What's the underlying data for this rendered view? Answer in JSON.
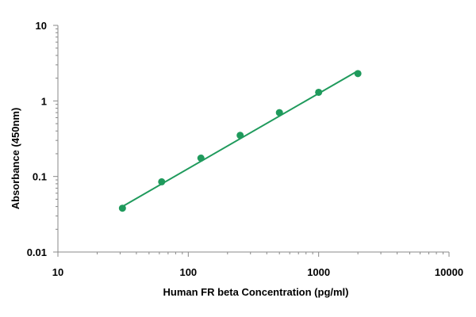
{
  "chart_data": {
    "type": "scatter",
    "title": "",
    "xlabel": "Human FR beta Concentration (pg/ml)",
    "ylabel": "Absorbance (450nm)",
    "x_scale": "log",
    "y_scale": "log",
    "xlim": [
      10,
      10000
    ],
    "ylim": [
      0.01,
      10
    ],
    "x_ticks": [
      10,
      100,
      1000,
      10000
    ],
    "x_tick_labels": [
      "10",
      "100",
      "1000",
      "10000"
    ],
    "y_ticks": [
      0.01,
      0.1,
      1,
      10
    ],
    "y_tick_labels": [
      "0.01",
      "0.1",
      "1",
      "10"
    ],
    "grid": false,
    "legend": "none",
    "series": [
      {
        "x": [
          31.25,
          62.5,
          125,
          250,
          500,
          1000,
          2000
        ],
        "y": [
          0.038,
          0.085,
          0.175,
          0.35,
          0.7,
          1.3,
          2.3
        ],
        "color": "#1f9a5c",
        "marker": "circle",
        "trendline": {
          "type": "power",
          "x": [
            31.25,
            2000
          ],
          "y": [
            0.04,
            2.5
          ]
        }
      }
    ]
  }
}
